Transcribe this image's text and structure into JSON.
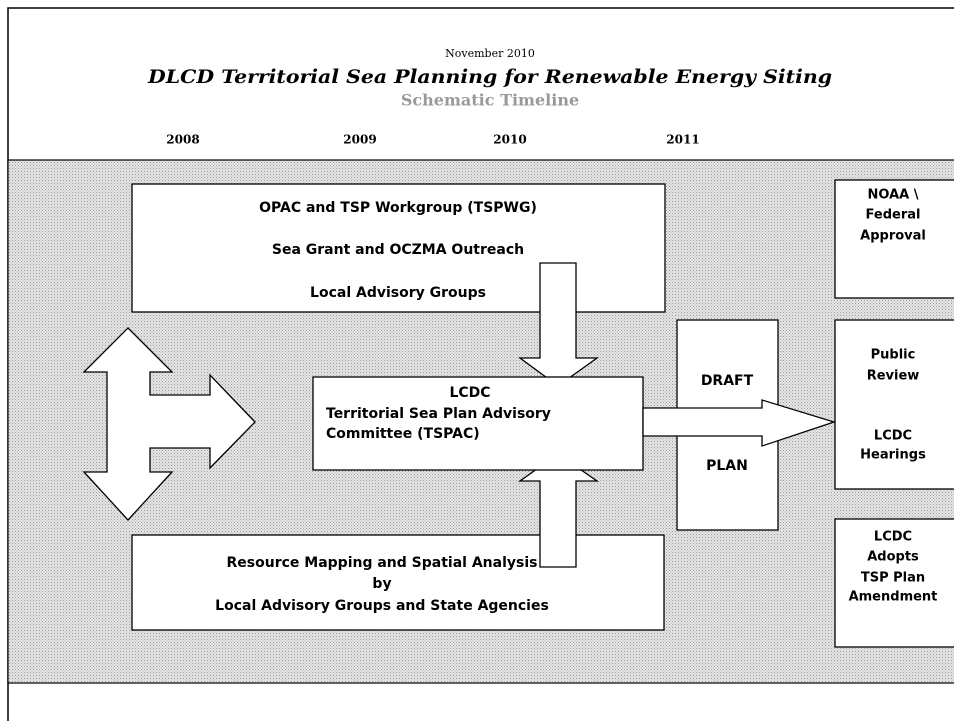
{
  "header": {
    "date": "November 2010",
    "title": "DLCD Territorial Sea Planning for Renewable Energy Siting",
    "subtitle": "Schematic Timeline",
    "years": [
      "2008",
      "2009",
      "2010",
      "2011"
    ]
  },
  "boxes": {
    "workgroup": [
      "OPAC and TSP Workgroup (TSPWG)",
      "Sea Grant and OCZMA Outreach",
      "Local Advisory Groups"
    ],
    "committee": [
      "LCDC",
      "Territorial Sea Plan Advisory",
      "Committee (TSPAC)"
    ],
    "mapping": [
      "Resource Mapping and Spatial Analysis",
      "by",
      "Local Advisory Groups and State Agencies"
    ],
    "draft": [
      "DRAFT",
      "PLAN"
    ],
    "federal": [
      "NOAA \\",
      "Federal",
      "Approval"
    ],
    "review": [
      "Public",
      "Review",
      "LCDC",
      "Hearings"
    ],
    "adopts": [
      "LCDC",
      "Adopts",
      "TSP Plan",
      "Amendment"
    ]
  }
}
